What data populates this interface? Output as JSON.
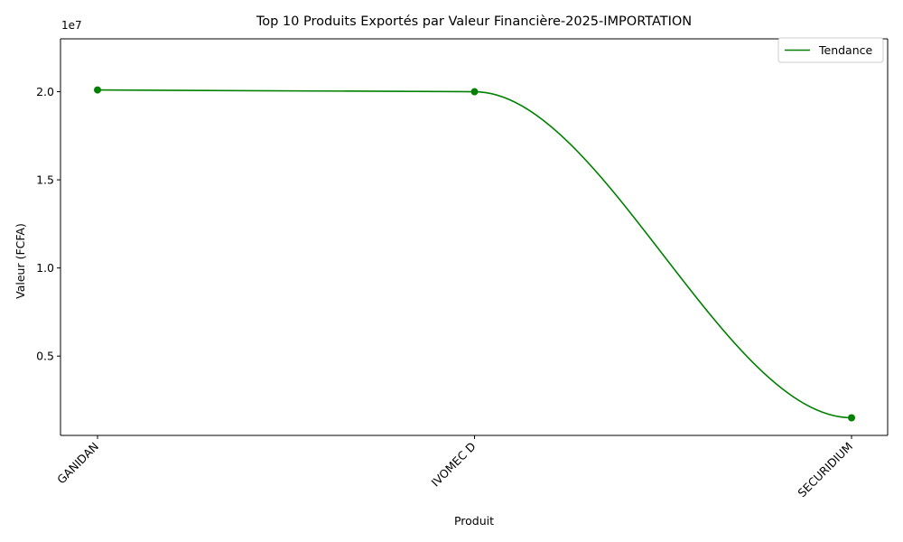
{
  "chart_data": {
    "type": "line",
    "title": "Top 10 Produits Exportés par Valeur Financière-2025-IMPORTATION",
    "xlabel": "Produit",
    "ylabel": "Valeur (FCFA)",
    "y_offset_label": "1e7",
    "categories": [
      "GANIDAN",
      "IVOMEC D",
      "SECURIDIUM"
    ],
    "series": [
      {
        "name": "Tendance",
        "values": [
          20100000,
          20000000,
          1500000
        ],
        "color": "#008000"
      }
    ],
    "ylim": [
      500000,
      23000000
    ],
    "y_ticks": [
      5000000,
      10000000,
      15000000,
      20000000
    ],
    "y_tick_labels": [
      "0.5",
      "1.0",
      "1.5",
      "2.0"
    ],
    "grid": false,
    "legend_position": "top-right",
    "smooth": true
  }
}
